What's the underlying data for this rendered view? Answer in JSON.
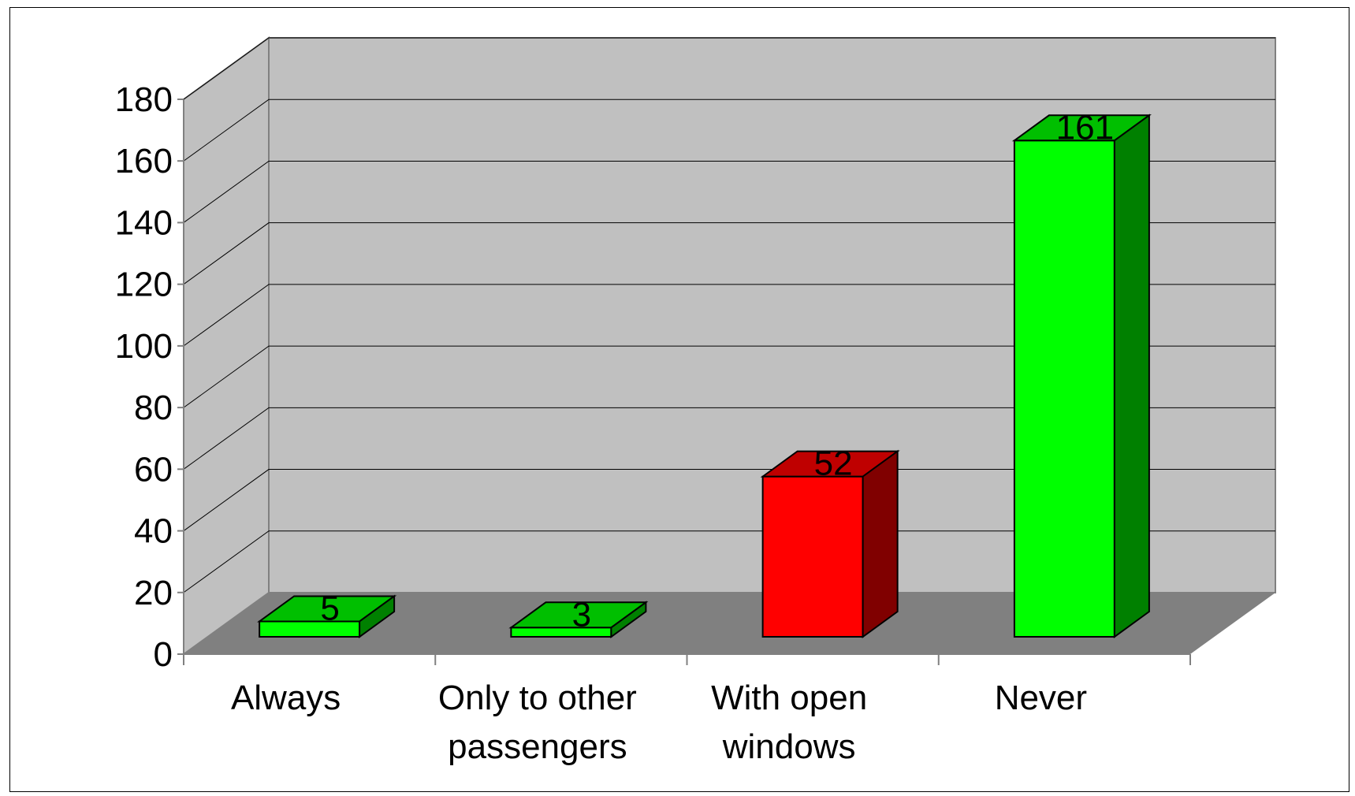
{
  "chart_data": {
    "type": "bar",
    "categories": [
      "Always",
      "Only to other passengers",
      "With open windows",
      "Never"
    ],
    "category_lines": [
      [
        "Always"
      ],
      [
        "Only to other",
        "passengers"
      ],
      [
        "With open",
        "windows"
      ],
      [
        "Never"
      ]
    ],
    "values": [
      5,
      3,
      52,
      161
    ],
    "data_labels": [
      "5",
      "3",
      "52",
      "161"
    ],
    "bar_colors": [
      "#00ff00",
      "#00ff00",
      "#ff0000",
      "#00ff00"
    ],
    "title": "",
    "xlabel": "",
    "ylabel": "",
    "ylim": [
      0,
      180
    ],
    "yticks": [
      "0",
      "20",
      "40",
      "60",
      "80",
      "100",
      "120",
      "140",
      "160",
      "180"
    ],
    "grid": true,
    "three_d": true,
    "wall_color": "#c0c0c0",
    "floor_color": "#808080"
  }
}
